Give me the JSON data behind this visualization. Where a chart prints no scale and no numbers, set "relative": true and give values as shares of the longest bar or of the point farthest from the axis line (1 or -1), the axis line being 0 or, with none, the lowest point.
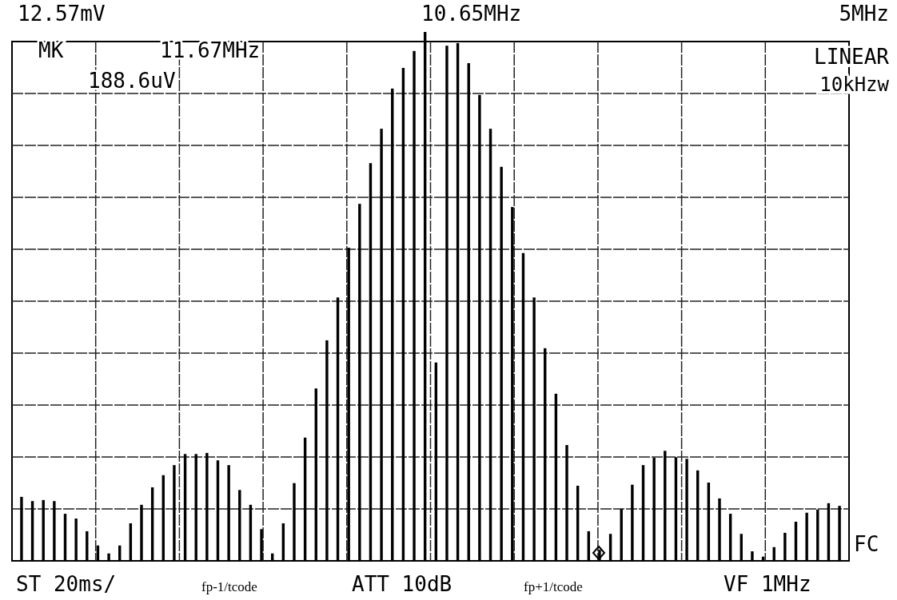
{
  "chart_data": {
    "type": "bar",
    "relative": true,
    "grid": true,
    "color": "#000000",
    "categories": [
      null,
      null,
      null,
      null,
      null,
      null,
      null,
      null,
      null,
      null,
      null,
      null,
      null,
      null,
      null,
      null,
      null,
      null,
      null,
      null,
      null,
      null,
      null,
      null,
      null,
      null,
      null,
      null,
      null,
      null,
      null,
      null,
      null,
      null,
      null,
      null,
      null,
      null,
      null,
      null,
      null,
      null,
      null,
      null,
      null,
      null,
      null,
      null,
      null,
      null,
      null,
      null,
      null,
      null,
      null,
      null,
      null,
      null,
      null,
      null,
      null,
      null,
      null,
      null,
      null,
      null,
      null,
      null,
      null,
      null,
      null,
      null,
      null,
      null,
      null,
      null
    ],
    "values": [
      0.121,
      0.113,
      0.115,
      0.113,
      0.089,
      0.08,
      0.056,
      0.029,
      0.014,
      0.029,
      0.071,
      0.106,
      0.139,
      0.162,
      0.181,
      0.202,
      0.202,
      0.204,
      0.19,
      0.181,
      0.134,
      0.106,
      0.06,
      0.014,
      0.071,
      0.147,
      0.233,
      0.326,
      0.417,
      0.498,
      0.592,
      0.675,
      0.752,
      0.817,
      0.893,
      0.932,
      0.964,
      1,
      0.375,
      0.974,
      0.979,
      0.941,
      0.881,
      0.817,
      0.745,
      0.669,
      0.582,
      0.498,
      0.402,
      0.316,
      0.219,
      0.142,
      0.056,
      0.021,
      0.051,
      0.098,
      0.144,
      0.181,
      0.195,
      0.208,
      0.196,
      0.193,
      0.171,
      0.148,
      0.118,
      0.089,
      0.051,
      0.018,
      0.008,
      0.026,
      0.053,
      0.074,
      0.091,
      0.097,
      0.109,
      0.104
    ],
    "annotations": [
      "12.57mV",
      "10.65MHz",
      "5MHz",
      "MK",
      "11.67MHz",
      "188.6uV",
      "LINEAR",
      "10kHzw",
      "FC",
      "ST 20ms/",
      "fp-1/tcode",
      "ATT 10dB",
      "fp+1/tcode",
      "VF 1MHz"
    ]
  }
}
